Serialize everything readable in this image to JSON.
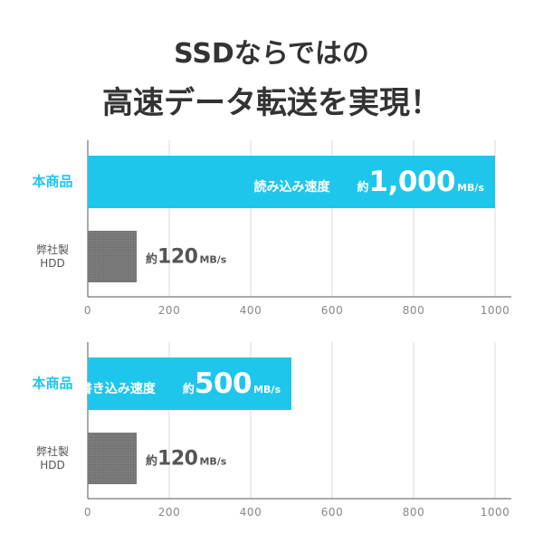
{
  "title_lines": [
    "SSDならではの",
    "高速データ転送を実現！"
  ],
  "chart_data": [
    {
      "type": "bar",
      "orientation": "horizontal",
      "categories": [
        "本商品",
        "弊社製\nHDD"
      ],
      "values": [
        1000,
        120
      ],
      "value_labels": [
        "1,000",
        "120"
      ],
      "value_prefix": "約",
      "value_unit": "MB/s",
      "bar_caption": "読み込み速度",
      "colors": [
        "#1ec6ec",
        "#7a7a7a"
      ],
      "xlim": [
        0,
        1000
      ],
      "xticks": [
        0,
        200,
        400,
        600,
        800,
        1000
      ],
      "grid": true
    },
    {
      "type": "bar",
      "orientation": "horizontal",
      "categories": [
        "本商品",
        "弊社製\nHDD"
      ],
      "values": [
        500,
        120
      ],
      "value_labels": [
        "500",
        "120"
      ],
      "value_prefix": "約",
      "value_unit": "MB/s",
      "bar_caption": "書き込み速度",
      "colors": [
        "#1ec6ec",
        "#7a7a7a"
      ],
      "xlim": [
        0,
        1000
      ],
      "xticks": [
        0,
        200,
        400,
        600,
        800,
        1000
      ],
      "grid": true
    }
  ]
}
